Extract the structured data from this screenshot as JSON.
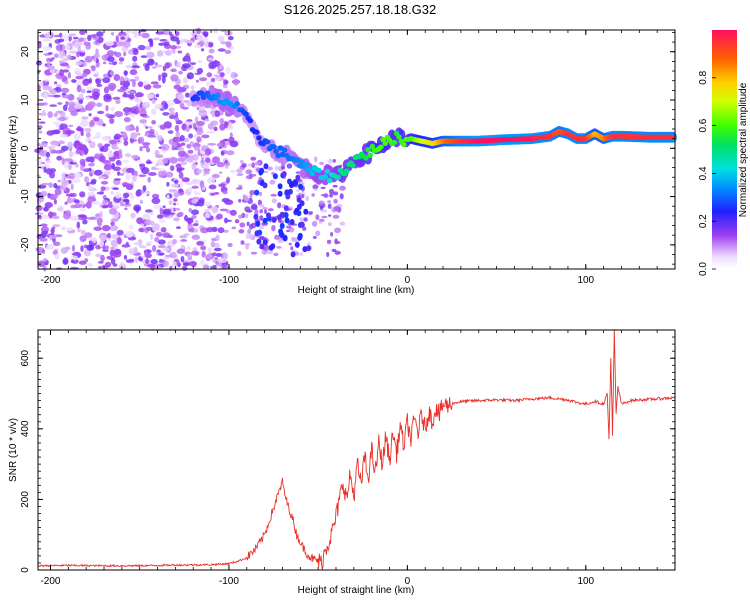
{
  "title": "S126.2025.257.18.18.G32",
  "chart_data": [
    {
      "type": "heatmap",
      "title": "S126.2025.257.18.18.G32",
      "xlabel": "Height of straight line (km)",
      "ylabel": "Frequency (Hz)",
      "xlim": [
        -207,
        150
      ],
      "ylim": [
        -25,
        24.5
      ],
      "xticks": [
        -200,
        -100,
        0,
        100
      ],
      "yticks": [
        -20,
        -10,
        0,
        10,
        20
      ],
      "colorbar": {
        "label": "Normalized spectral amplitude",
        "range": [
          0,
          1
        ],
        "ticks": [
          "0.0",
          "0.2",
          "0.4",
          "0.6",
          "0.8"
        ],
        "tick_values": [
          0,
          0.2,
          0.4,
          0.6,
          0.8
        ]
      },
      "ridge": {
        "x": [
          -120,
          -112,
          -104,
          -98,
          -94,
          -88,
          -82,
          -76,
          -70,
          -64,
          -58,
          -52,
          -46,
          -40,
          -34,
          -28,
          -22,
          -16,
          -10,
          -6,
          -2,
          2,
          8,
          14,
          20,
          30,
          40,
          55,
          70,
          80,
          85,
          90,
          95,
          100,
          105,
          110,
          115,
          120,
          135,
          150
        ],
        "freq": [
          11,
          10.5,
          10,
          9.2,
          7.8,
          5,
          2,
          0,
          -1,
          -2,
          -4,
          -5,
          -5.5,
          -6,
          -4,
          -2,
          -1,
          0.5,
          1.5,
          2.5,
          1.5,
          2,
          1.5,
          1,
          1.5,
          1.5,
          1.5,
          1.8,
          2,
          2.5,
          3.5,
          3,
          2,
          2,
          3,
          2,
          2.5,
          2.5,
          2.3,
          2.3
        ],
        "amplitude": [
          0.25,
          0.3,
          0.35,
          0.35,
          0.3,
          0.25,
          0.25,
          0.3,
          0.3,
          0.32,
          0.35,
          0.4,
          0.4,
          0.45,
          0.5,
          0.5,
          0.55,
          0.6,
          0.6,
          0.55,
          0.6,
          0.6,
          0.7,
          0.75,
          0.85,
          0.95,
          1.0,
          1.0,
          0.98,
          0.95,
          0.9,
          0.95,
          0.95,
          0.95,
          0.8,
          0.85,
          0.95,
          0.95,
          0.95,
          0.95
        ]
      }
    },
    {
      "type": "line",
      "xlabel": "Height of straight line (km)",
      "ylabel": "SNR (10 * v/v)",
      "xlim": [
        -207,
        150
      ],
      "ylim": [
        0,
        680
      ],
      "xticks": [
        -200,
        -100,
        0,
        100
      ],
      "yticks": [
        0,
        200,
        400,
        600
      ],
      "series": [
        {
          "name": "SNR",
          "color": "#e8312a",
          "x": [
            -207,
            -190,
            -170,
            -150,
            -130,
            -110,
            -100,
            -95,
            -90,
            -85,
            -80,
            -76,
            -72,
            -70,
            -68,
            -66,
            -64,
            -62,
            -60,
            -58,
            -56,
            -54,
            -52,
            -50,
            -48,
            -46,
            -44,
            -42,
            -40,
            -38,
            -36,
            -34,
            -32,
            -30,
            -28,
            -26,
            -24,
            -22,
            -20,
            -18,
            -16,
            -14,
            -12,
            -10,
            -8,
            -6,
            -4,
            -2,
            0,
            2,
            4,
            6,
            8,
            10,
            12,
            14,
            16,
            18,
            20,
            22,
            24,
            28,
            32,
            40,
            50,
            60,
            70,
            80,
            90,
            95,
            100,
            105,
            110,
            112,
            113,
            114,
            115,
            116,
            117,
            118,
            120,
            125,
            130,
            140,
            150
          ],
          "y": [
            12,
            13,
            12,
            12,
            14,
            15,
            18,
            25,
            35,
            60,
            100,
            160,
            220,
            250,
            200,
            170,
            140,
            100,
            80,
            60,
            45,
            35,
            30,
            25,
            20,
            60,
            80,
            110,
            150,
            200,
            250,
            200,
            270,
            210,
            300,
            240,
            320,
            260,
            340,
            270,
            360,
            300,
            380,
            310,
            390,
            330,
            410,
            350,
            420,
            370,
            430,
            390,
            440,
            400,
            450,
            420,
            460,
            440,
            470,
            465,
            470,
            475,
            478,
            480,
            482,
            480,
            485,
            488,
            482,
            475,
            470,
            478,
            470,
            500,
            370,
            600,
            380,
            680,
            440,
            520,
            470,
            480,
            482,
            485,
            488
          ]
        }
      ]
    }
  ]
}
